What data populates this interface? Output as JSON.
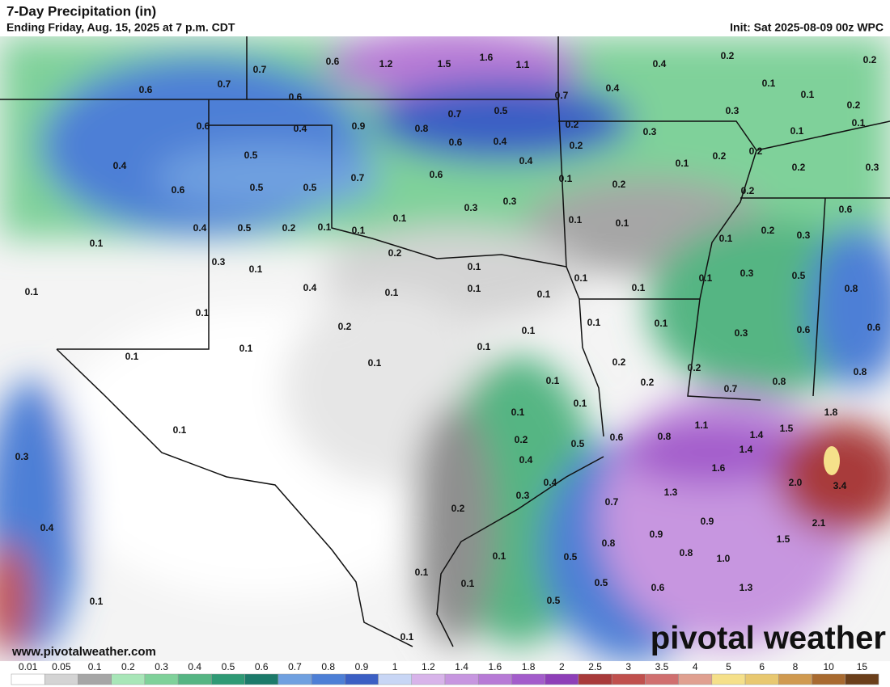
{
  "header": {
    "title": "7-Day Precipitation (in)",
    "subtitle": "Ending Friday, Aug. 15, 2025 at 7 p.m. CDT",
    "init": "Init: Sat 2025-08-09 00z WPC"
  },
  "map": {
    "labels": [
      "0.6",
      "0.7",
      "0.7",
      "0.6",
      "1.2",
      "1.5",
      "1.6",
      "1.1",
      "0.4",
      "0.2",
      "0.2",
      "0.6",
      "0.6",
      "0.4",
      "0.9",
      "0.8",
      "0.7",
      "0.5",
      "0.7",
      "0.4",
      "0.1",
      "0.1",
      "0.2",
      "0.4",
      "0.5",
      "0.6",
      "0.4",
      "0.2",
      "0.3",
      "0.3",
      "0.1",
      "0.1",
      "0.2",
      "0.2",
      "0.2",
      "0.6",
      "0.5",
      "0.5",
      "0.7",
      "0.6",
      "0.4",
      "0.1",
      "0.2",
      "0.3",
      "0.1",
      "0.2",
      "0.2",
      "0.3",
      "0.3",
      "0.1",
      "0.1",
      "0.1",
      "0.6",
      "0.4",
      "0.5",
      "0.2",
      "0.1",
      "0.1",
      "0.2",
      "0.3",
      "0.1",
      "0.1",
      "0.2",
      "0.3",
      "0.1",
      "0.1",
      "0.1",
      "0.1",
      "0.1",
      "0.3",
      "0.5",
      "0.8",
      "0.1",
      "0.4",
      "0.1",
      "0.1",
      "0.1",
      "0.1",
      "0.2",
      "0.1",
      "0.1",
      "0.1",
      "0.3",
      "0.6",
      "0.6",
      "0.1",
      "0.1",
      "0.1",
      "0.1",
      "0.2",
      "0.2",
      "0.8",
      "0.1",
      "0.2",
      "0.8",
      "0.7",
      "0.1",
      "0.1",
      "0.1",
      "1.1",
      "1.8",
      "1.4",
      "1.5",
      "0.2",
      "0.5",
      "0.6",
      "0.8",
      "1.4",
      "0.4",
      "0.3",
      "1.6",
      "0.4",
      "0.3",
      "1.3",
      "2.0",
      "3.4",
      "0.7",
      "0.2",
      "0.9",
      "2.1",
      "0.4",
      "0.9",
      "0.8",
      "1.5",
      "0.8",
      "1.0",
      "0.1",
      "0.5",
      "0.1",
      "0.1",
      "0.5",
      "0.6",
      "1.3",
      "0.1",
      "0.5",
      "0.1"
    ]
  },
  "legend": {
    "labels": [
      "0.01",
      "0.05",
      "0.1",
      "0.2",
      "0.3",
      "0.4",
      "0.5",
      "0.6",
      "0.7",
      "0.8",
      "0.9",
      "1",
      "1.2",
      "1.4",
      "1.6",
      "1.8",
      "2",
      "2.5",
      "3",
      "3.5",
      "4",
      "5",
      "6",
      "8",
      "10",
      "15"
    ],
    "colors": [
      "#ffffff",
      "#d4d4d4",
      "#a6a6a6",
      "#a8e6b8",
      "#7fd19a",
      "#55b583",
      "#2f9a75",
      "#1c7a6a",
      "#6fa0e0",
      "#4d7fd6",
      "#3b5fc4",
      "#c8d6f5",
      "#d8b4ea",
      "#c796e0",
      "#b77ad6",
      "#a35ccb",
      "#8e3fb8",
      "#a83a3a",
      "#c0504d",
      "#d06f6f",
      "#e0a090",
      "#f5e08a",
      "#e8c870",
      "#d09a50",
      "#a86a30",
      "#6b3f1a"
    ]
  },
  "footer": {
    "website": "www.pivotalweather.com",
    "brand": "pivotal weather"
  }
}
